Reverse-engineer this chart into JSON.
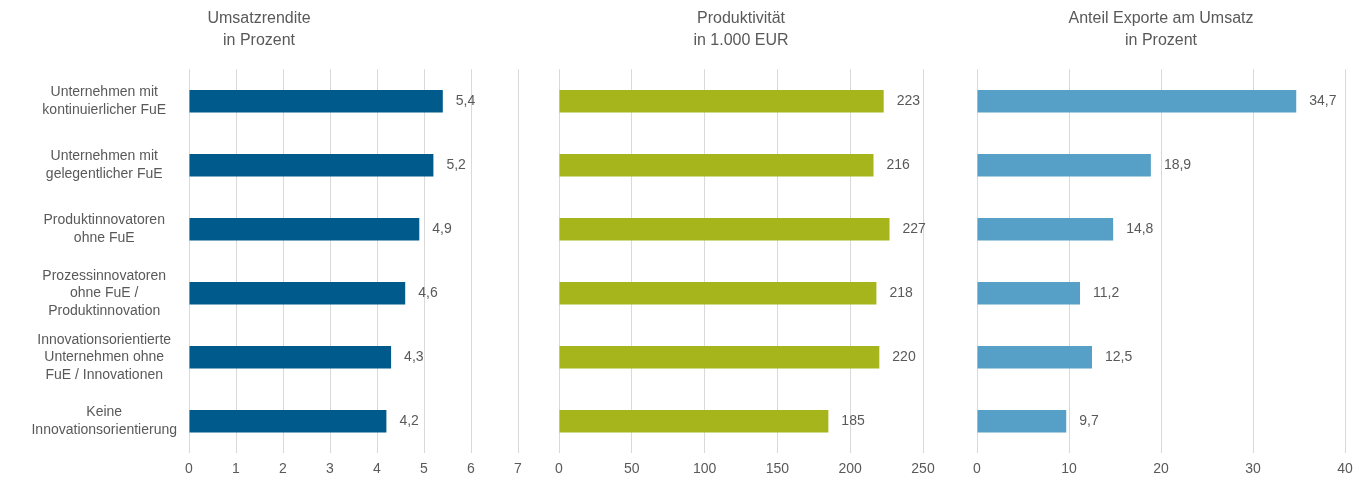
{
  "chart_data": [
    {
      "type": "bar",
      "orientation": "horizontal",
      "title": "Umsatzrendite\nin Prozent",
      "categories": [
        "Unternehmen mit\nkontinuierlicher FuE",
        "Unternehmen mit\ngelegentlicher FuE",
        "Produktinnovatoren\nohne FuE",
        "Prozessinnovatoren\nohne FuE /\nProduktinnovation",
        "Innovationsorientierte\nUnternehmen ohne\nFuE / Innovationen",
        "Keine\nInnovationsorientierung"
      ],
      "values": [
        5.4,
        5.2,
        4.9,
        4.6,
        4.3,
        4.2
      ],
      "value_labels": [
        "5,4",
        "5,2",
        "4,9",
        "4,6",
        "4,3",
        "4,2"
      ],
      "color": "#005a8c",
      "xlim": [
        0,
        7
      ],
      "xticks": [
        0,
        1,
        2,
        3,
        4,
        5,
        6,
        7
      ],
      "grid": "x",
      "legend": false
    },
    {
      "type": "bar",
      "orientation": "horizontal",
      "title": "Produktivität\nin 1.000 EUR",
      "categories": [
        null,
        null,
        null,
        null,
        null,
        null
      ],
      "values": [
        223,
        216,
        227,
        218,
        220,
        185
      ],
      "value_labels": [
        "223",
        "216",
        "227",
        "218",
        "220",
        "185"
      ],
      "color": "#a6b51b",
      "xlim": [
        0,
        250
      ],
      "xticks": [
        0,
        50,
        100,
        150,
        200,
        250
      ],
      "grid": "x",
      "legend": false,
      "tick_labels": "x"
    },
    {
      "type": "bar",
      "orientation": "horizontal",
      "title": "Anteil Exporte am Umsatz\nin Prozent",
      "categories": [
        null,
        null,
        null,
        null,
        null,
        null
      ],
      "values": [
        34.7,
        18.9,
        14.8,
        11.2,
        12.5,
        9.7
      ],
      "value_labels": [
        "34,7",
        "18,9",
        "14,8",
        "11,2",
        "12,5",
        "9,7"
      ],
      "color": "#56a0c8",
      "xlim": [
        0,
        40
      ],
      "xticks": [
        0,
        10,
        20,
        30,
        40
      ],
      "grid": "x",
      "legend": false,
      "tick_labels": "x"
    }
  ]
}
